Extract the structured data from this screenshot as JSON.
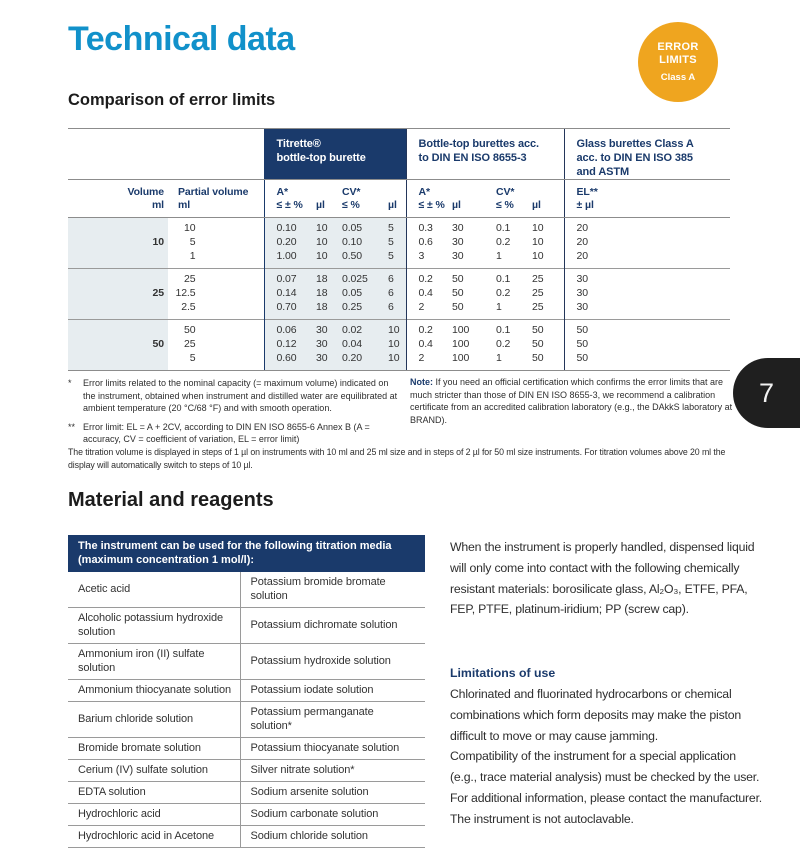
{
  "page": {
    "title": "Technical data",
    "page_number": "7"
  },
  "badge": {
    "top_lines": "ERROR\nLIMITS",
    "bottom_line": "Class A",
    "color": "#efa51f"
  },
  "comparison": {
    "heading": "Comparison of error limits",
    "group_headers": {
      "titrette": "Titrette®\nbottle-top burette",
      "bottletop": "Bottle-top burettes acc.\nto DIN EN ISO 8655-3",
      "glass": "Glass burettes Class A\nacc. to DIN EN ISO 385\nand ASTM"
    },
    "subheaders": {
      "volume": "Volume\nml",
      "partial": "Partial volume\nml",
      "a": "A*\n≤ ± %",
      "ul": "µl",
      "cv": "CV*\n≤ %",
      "el": "EL**\n± µl"
    },
    "groups": [
      {
        "volume": "10",
        "rows": [
          [
            "10",
            "0.10",
            "10",
            "0.05",
            "5",
            "0.3",
            "30",
            "0.1",
            "10",
            "20"
          ],
          [
            "5",
            "0.20",
            "10",
            "0.10",
            "5",
            "0.6",
            "30",
            "0.2",
            "10",
            "20"
          ],
          [
            "1",
            "1.00",
            "10",
            "0.50",
            "5",
            "3",
            "30",
            "1",
            "10",
            "20"
          ]
        ]
      },
      {
        "volume": "25",
        "rows": [
          [
            "25",
            "0.07",
            "18",
            "0.025",
            "6",
            "0.2",
            "50",
            "0.1",
            "25",
            "30"
          ],
          [
            "12.5",
            "0.14",
            "18",
            "0.05",
            "6",
            "0.4",
            "50",
            "0.2",
            "25",
            "30"
          ],
          [
            "2.5",
            "0.70",
            "18",
            "0.25",
            "6",
            "2",
            "50",
            "1",
            "25",
            "30"
          ]
        ]
      },
      {
        "volume": "50",
        "rows": [
          [
            "50",
            "0.06",
            "30",
            "0.02",
            "10",
            "0.2",
            "100",
            "0.1",
            "50",
            "50"
          ],
          [
            "25",
            "0.12",
            "30",
            "0.04",
            "10",
            "0.4",
            "100",
            "0.2",
            "50",
            "50"
          ],
          [
            "5",
            "0.60",
            "30",
            "0.20",
            "10",
            "2",
            "100",
            "1",
            "50",
            "50"
          ]
        ]
      }
    ],
    "footnotes": [
      {
        "marker": "*",
        "text": "Error limits related to the nominal capacity (= maximum volume) indicated on the instrument, obtained when instrument and distilled water are equilibrated at ambient temperature (20 °C/68 °F) and with smooth operation."
      },
      {
        "marker": "**",
        "text": "Error limit: EL = A + 2CV, according to DIN EN ISO 8655-6 Annex B (A = accuracy, CV = coefficient of variation, EL = error limit)"
      }
    ],
    "note_label": "Note:",
    "note_text": " If you need an official certification which confirms the error limits that are much stricter than those of DIN EN ISO 8655-3, we recommend a calibration certificate from an accredited calibration laboratory (e.g., the DAkkS laboratory at BRAND).",
    "steps_text": "The titration volume is displayed in steps of 1 µl on instruments with 10 ml and 25 ml size and in steps of 2 µl for 50 ml size instruments. For titration volumes above 20 ml the\ndisplay will automatically switch to steps of 10 µl."
  },
  "materials": {
    "heading": "Material and reagents",
    "table_header": "The instrument can be used for the following titration media (maximum concentration 1 mol/l):",
    "rows": [
      [
        "Acetic acid",
        "Potassium bromide bromate solution"
      ],
      [
        "Alcoholic potassium hydroxide solution",
        "Potassium dichromate solution"
      ],
      [
        "Ammonium iron (II) sulfate solution",
        "Potassium hydroxide solution"
      ],
      [
        "Ammonium thiocyanate solution",
        "Potassium iodate solution"
      ],
      [
        "Barium chloride solution",
        "Potassium permanganate solution*"
      ],
      [
        "Bromide bromate solution",
        "Potassium thiocyanate solution"
      ],
      [
        "Cerium (IV) sulfate solution",
        "Silver nitrate solution*"
      ],
      [
        "EDTA solution",
        "Sodium arsenite solution"
      ],
      [
        "Hydrochloric acid",
        "Sodium carbonate solution"
      ],
      [
        "Hydrochloric acid in Acetone",
        "Sodium chloride solution"
      ]
    ]
  },
  "usage": {
    "intro": "When the instrument is properly handled, dispensed liquid will only come into contact with the following chemically resistant materials: borosilicate glass, Al₂O₃, ETFE, PFA, FEP, PTFE, platinum-iridium; PP (screw cap).",
    "limitations_heading": "Limitations of use",
    "limitations_text": "Chlorinated and fluorinated hydrocarbons or chemical combinations which form deposits may make the piston difficult to move or may cause jamming.\nCompatibility of the instrument for a special application (e.g., trace material analysis) must be checked by the user. For additional information, please contact the manufacturer. The instrument is not autoclavable."
  }
}
